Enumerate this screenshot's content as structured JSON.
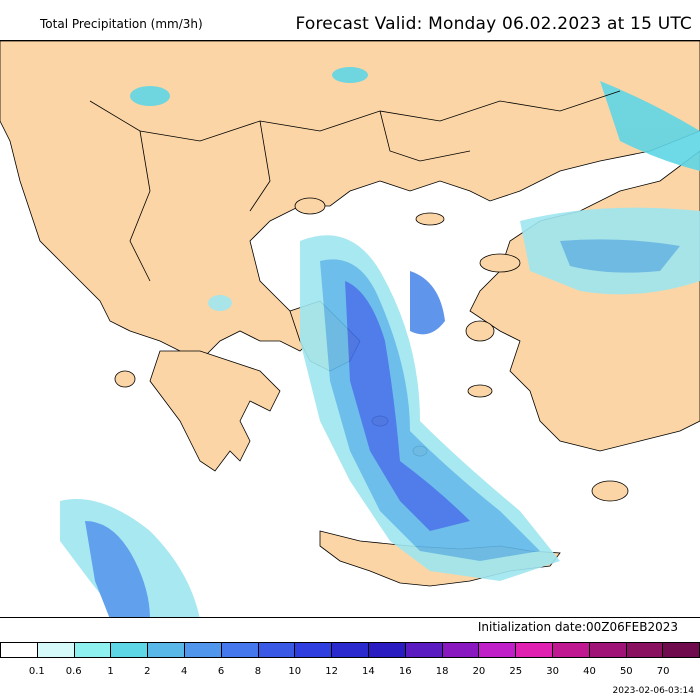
{
  "header": {
    "title": "Total Precipitation (mm/3h)",
    "forecast_valid": "Forecast Valid:  Monday 06.02.2023 at 15 UTC"
  },
  "map": {
    "land_color": "#fbd5a5",
    "sea_color": "#ffffff",
    "border_color": "#000000"
  },
  "initialization": "Initialization date:00Z06FEB2023",
  "timestamp": "2023-02-06-03:14",
  "colorbar": {
    "colors": [
      "#ffffff",
      "#d6fafa",
      "#8ff0f0",
      "#5fd6e6",
      "#5ab8e8",
      "#5096ec",
      "#4478ec",
      "#3a5ae6",
      "#2f3ede",
      "#2a2acf",
      "#2a1cc0",
      "#5a1cc0",
      "#8a18c0",
      "#c020c8",
      "#e020b0",
      "#c01890",
      "#a01478",
      "#8a1060",
      "#700c4e"
    ],
    "labels": [
      "0.1",
      "0.6",
      "1",
      "2",
      "4",
      "6",
      "8",
      "10",
      "12",
      "14",
      "16",
      "18",
      "20",
      "25",
      "30",
      "40",
      "50",
      "70"
    ]
  }
}
